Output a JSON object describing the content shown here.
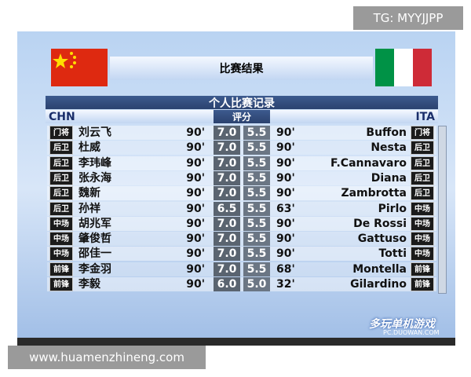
{
  "watermark_top": "TG: MYYJJPP",
  "title": "比赛结果",
  "section_title": "个人比赛记录",
  "home_team": "CHN",
  "rating_header": "评分",
  "away_team": "ITA",
  "rows": [
    {
      "home_position": "门将",
      "home_player": "刘云飞",
      "home_minutes": "90'",
      "home_rating": "7.0",
      "away_rating": "5.5",
      "away_minutes": "90'",
      "away_player": "Buffon",
      "away_position": "门将"
    },
    {
      "home_position": "后卫",
      "home_player": "杜威",
      "home_minutes": "90'",
      "home_rating": "7.0",
      "away_rating": "5.5",
      "away_minutes": "90'",
      "away_player": "Nesta",
      "away_position": "后卫"
    },
    {
      "home_position": "后卫",
      "home_player": "李玮峰",
      "home_minutes": "90'",
      "home_rating": "7.0",
      "away_rating": "5.5",
      "away_minutes": "90'",
      "away_player": "F.Cannavaro",
      "away_position": "后卫"
    },
    {
      "home_position": "后卫",
      "home_player": "张永海",
      "home_minutes": "90'",
      "home_rating": "7.0",
      "away_rating": "5.5",
      "away_minutes": "90'",
      "away_player": "Diana",
      "away_position": "后卫"
    },
    {
      "home_position": "后卫",
      "home_player": "魏新",
      "home_minutes": "90'",
      "home_rating": "7.0",
      "away_rating": "5.5",
      "away_minutes": "90'",
      "away_player": "Zambrotta",
      "away_position": "后卫"
    },
    {
      "home_position": "后卫",
      "home_player": "孙祥",
      "home_minutes": "90'",
      "home_rating": "6.5",
      "away_rating": "5.5",
      "away_minutes": "63'",
      "away_player": "Pirlo",
      "away_position": "中场"
    },
    {
      "home_position": "中场",
      "home_player": "胡兆军",
      "home_minutes": "90'",
      "home_rating": "7.0",
      "away_rating": "5.5",
      "away_minutes": "90'",
      "away_player": "De Rossi",
      "away_position": "中场"
    },
    {
      "home_position": "中场",
      "home_player": "肇俊哲",
      "home_minutes": "90'",
      "home_rating": "7.0",
      "away_rating": "5.5",
      "away_minutes": "90'",
      "away_player": "Gattuso",
      "away_position": "中场"
    },
    {
      "home_position": "中场",
      "home_player": "邵佳一",
      "home_minutes": "90'",
      "home_rating": "7.0",
      "away_rating": "5.5",
      "away_minutes": "90'",
      "away_player": "Totti",
      "away_position": "中场"
    },
    {
      "home_position": "前锋",
      "home_player": "李金羽",
      "home_minutes": "90'",
      "home_rating": "7.0",
      "away_rating": "5.5",
      "away_minutes": "68'",
      "away_player": "Montella",
      "away_position": "前锋"
    },
    {
      "home_position": "前锋",
      "home_player": "李毅",
      "home_minutes": "90'",
      "home_rating": "6.0",
      "away_rating": "5.0",
      "away_minutes": "32'",
      "away_player": "Gilardino",
      "away_position": "前锋"
    }
  ],
  "logo": "多玩单机游戏",
  "logo_url": "PC.DUOWAN.COM",
  "watermark_bottom": "www.huamenzhineng.com"
}
